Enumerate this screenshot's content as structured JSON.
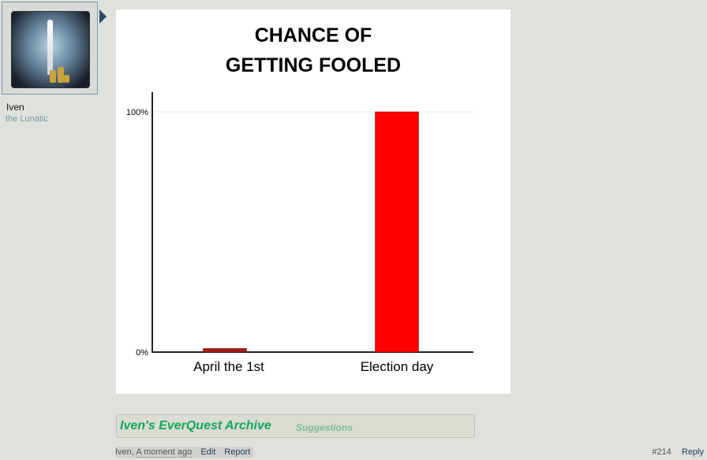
{
  "user": {
    "name": "Iven",
    "title": "the Lunatic"
  },
  "chart_data": {
    "type": "bar",
    "title": "CHANCE OF\nGETTING FOOLED",
    "title_lines": [
      "CHANCE OF",
      "GETTING FOOLED"
    ],
    "categories": [
      "April the 1st",
      "Election day"
    ],
    "values": [
      1.5,
      100
    ],
    "y_ticks": [
      "0%",
      "100%"
    ],
    "ylim": [
      0,
      100
    ],
    "grid": false,
    "bar_colors": [
      "#a31b1b",
      "#ff0000"
    ]
  },
  "signature": {
    "title": "Iven's EverQuest Archive",
    "link": "Suggestions"
  },
  "post_meta": {
    "author": "Iven,",
    "time": "A moment ago",
    "edit": "Edit",
    "report": "Report",
    "number": "#214",
    "reply": "Reply"
  }
}
